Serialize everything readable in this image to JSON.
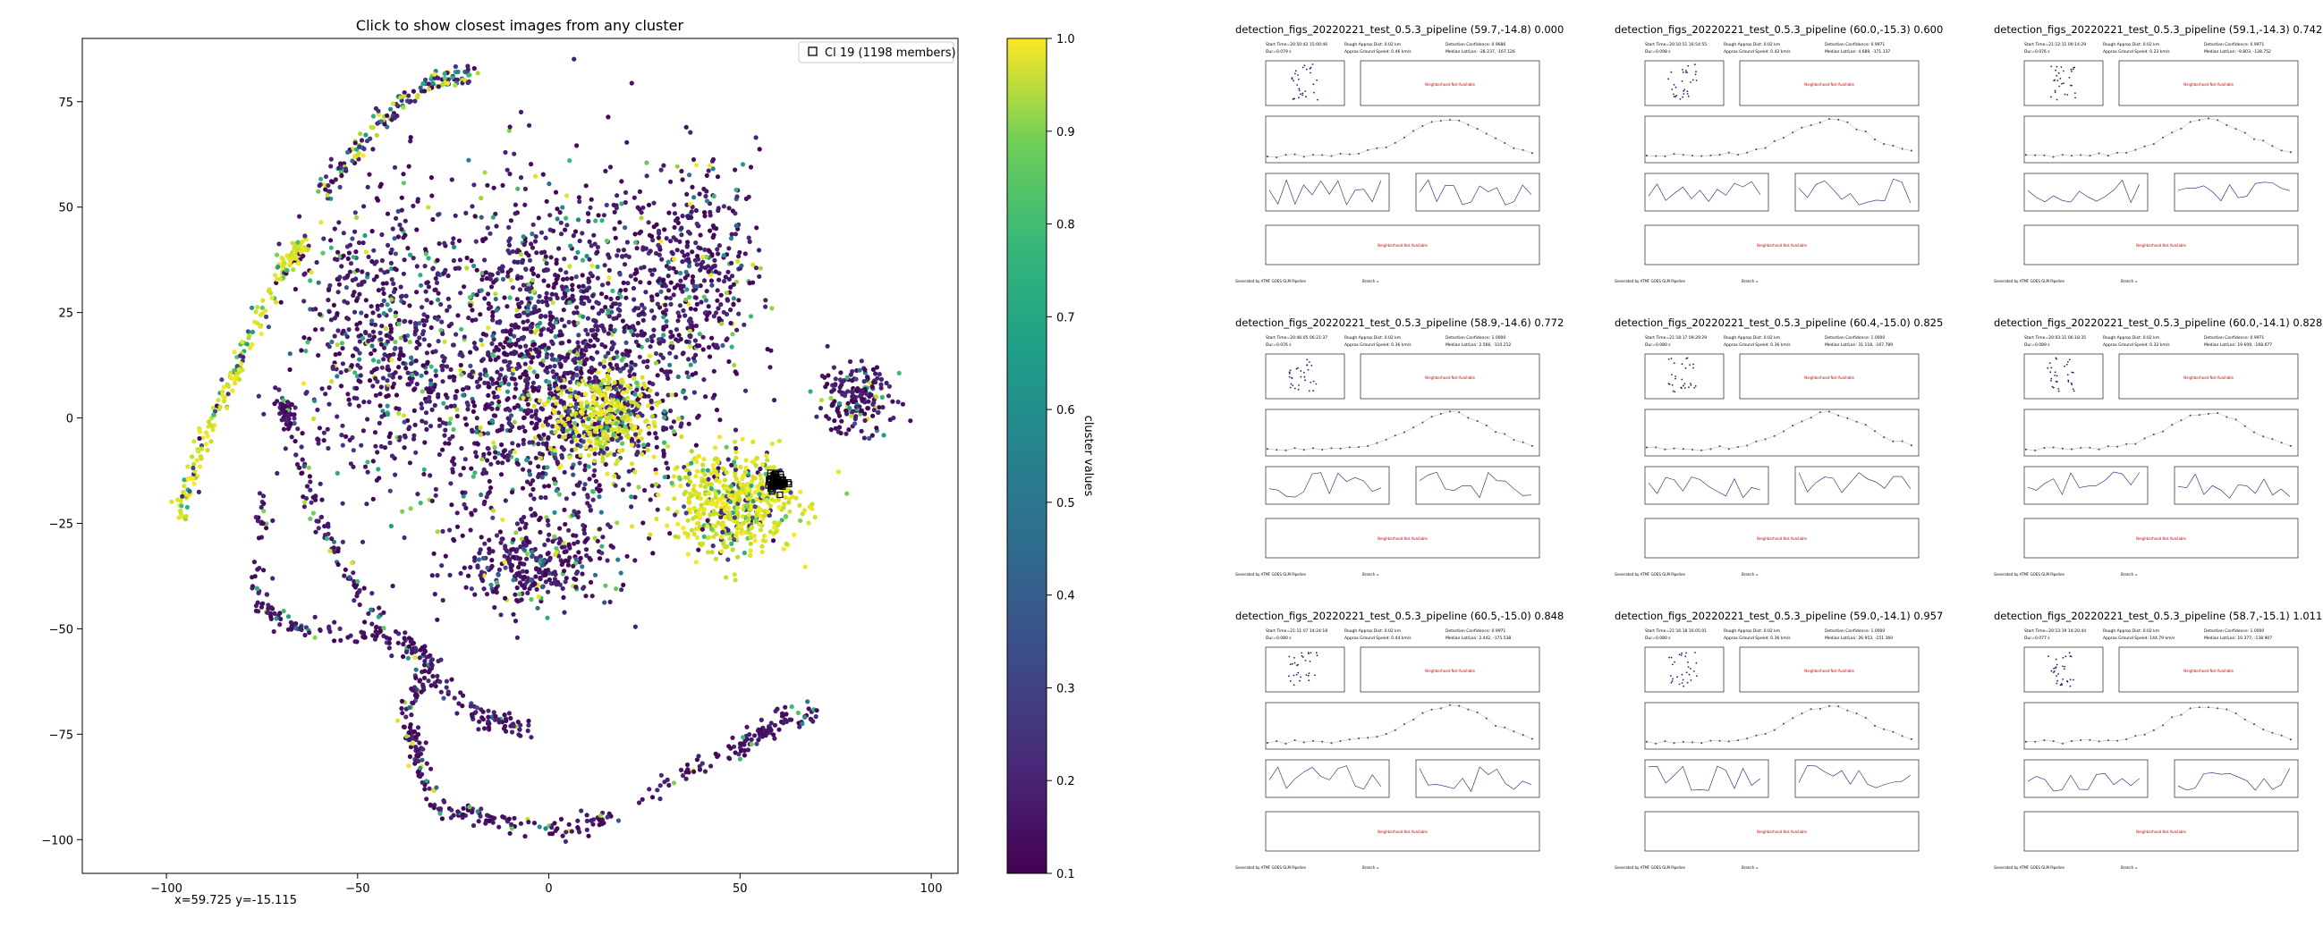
{
  "scatter_panel": {
    "title": "Click to show closest images from any cluster",
    "legend_label": "Cl 19 (1198 members)",
    "cursor_readout": "x=59.725 y=-15.115"
  },
  "colorbar": {
    "label": "cluster values",
    "ticks": [
      "0.1",
      "0.2",
      "0.3",
      "0.4",
      "0.5",
      "0.6",
      "0.7",
      "0.8",
      "0.9",
      "1.0"
    ],
    "colormap": "viridis"
  },
  "chart_data": {
    "type": "scatter",
    "title": "Click to show closest images from any cluster",
    "xlim": [
      -122,
      107
    ],
    "ylim": [
      -108,
      90
    ],
    "xticks": [
      -100,
      -50,
      0,
      50,
      100
    ],
    "yticks": [
      -100,
      -75,
      -50,
      -25,
      0,
      25,
      50,
      75
    ],
    "color_range": [
      0.1,
      1.0
    ],
    "color_label": "cluster values",
    "legend": {
      "location": "top-right",
      "entries": [
        "Cl 19 (1198 members)"
      ]
    },
    "highlight_cluster": {
      "name": "Cl 19 (1198 members)",
      "center": [
        59.7,
        -15.1
      ],
      "size": 1198
    },
    "regions": [
      {
        "kind": "blob",
        "center": [
          0,
          12
        ],
        "spread": [
          30,
          34
        ],
        "value": "low",
        "count": 1700
      },
      {
        "kind": "blob",
        "center": [
          -45,
          20
        ],
        "spread": [
          18,
          28
        ],
        "value": "low",
        "count": 500
      },
      {
        "kind": "blob",
        "center": [
          38,
          35
        ],
        "spread": [
          14,
          22
        ],
        "value": "low",
        "count": 400
      },
      {
        "kind": "blob",
        "center": [
          80,
          5
        ],
        "spread": [
          8,
          7
        ],
        "value": "low",
        "count": 180
      },
      {
        "kind": "blob",
        "center": [
          15,
          0
        ],
        "spread": [
          12,
          9
        ],
        "value": "high",
        "count": 350
      },
      {
        "kind": "blob",
        "center": [
          48,
          -20
        ],
        "spread": [
          14,
          10
        ],
        "value": "high",
        "count": 550
      },
      {
        "kind": "blob",
        "center": [
          -5,
          -35
        ],
        "spread": [
          18,
          8
        ],
        "value": "low",
        "count": 280
      },
      {
        "kind": "curve",
        "points": [
          [
            -97,
            -25
          ],
          [
            -90,
            -5
          ],
          [
            -80,
            15
          ],
          [
            -70,
            35
          ],
          [
            -64,
            42
          ]
        ],
        "value": "high",
        "count": 220
      },
      {
        "kind": "curve",
        "points": [
          [
            -60,
            52
          ],
          [
            -45,
            70
          ],
          [
            -30,
            80
          ],
          [
            -20,
            82
          ]
        ],
        "value": "mixed",
        "count": 160
      },
      {
        "kind": "curve",
        "points": [
          [
            -68,
            -2
          ],
          [
            -70,
            5
          ],
          [
            -60,
            -25
          ],
          [
            -40,
            -55
          ],
          [
            -20,
            -70
          ],
          [
            -5,
            -75
          ]
        ],
        "value": "low",
        "count": 240
      },
      {
        "kind": "curve",
        "points": [
          [
            -75,
            -18
          ],
          [
            -76,
            -45
          ],
          [
            -65,
            -50
          ],
          [
            -40,
            -52
          ],
          [
            -30,
            -58
          ],
          [
            -38,
            -70
          ],
          [
            -35,
            -78
          ]
        ],
        "value": "low",
        "count": 220
      },
      {
        "kind": "curve",
        "points": [
          [
            -35,
            -80
          ],
          [
            -30,
            -92
          ],
          [
            -15,
            -95
          ],
          [
            0,
            -98
          ],
          [
            15,
            -95
          ],
          [
            35,
            -85
          ],
          [
            50,
            -78
          ],
          [
            60,
            -72
          ],
          [
            70,
            -70
          ]
        ],
        "value": "low",
        "count": 260
      }
    ]
  },
  "thumbnails": [
    {
      "title": "detection_figs_20220221_test_0.5.3_pipeline (59.7,-14.8) 0.000",
      "header": [
        "Start Time=20:50:42 15:00:46",
        "Rough Approx Dist: 0.02 km",
        "Detection Confidence: 0.9686",
        "Dur=0.079 s",
        "Approx Ground Speed: 0.46 km/s",
        "Median Lat/Lon: -28.237, -167.126"
      ],
      "subplot_labels": [
        "Neighborhood Not Available",
        "Neighborhood Not Available"
      ],
      "footer": [
        "Generated by ATMF GOES GLM Pipeline",
        "Branch ="
      ]
    },
    {
      "title": "detection_figs_20220221_test_0.5.3_pipeline (60.0,-15.3) 0.600",
      "header": [
        "Start Time=20:10:51 16:54:55",
        "Rough Approx Dist: 0.02 km",
        "Detection Confidence: 0.9971",
        "Dur=0.098 s",
        "Approx Ground Speed: 0.42 km/s",
        "Median Lat/Lon: 4.689, -171.137"
      ],
      "subplot_labels": [
        "Neighborhood Not Available",
        "Neighborhood Not Available"
      ],
      "footer": [
        "Generated by ATMF GOES GLM Pipeline",
        "Branch ="
      ]
    },
    {
      "title": "detection_figs_20220221_test_0.5.3_pipeline (59.1,-14.3) 0.742",
      "header": [
        "Start Time=21:12:11 09:14:29",
        "Rough Approx Dist: 0.02 km",
        "Detection Confidence: 0.9971",
        "Dur=0.076 s",
        "Approx Ground Speed: 0.23 km/s",
        "Median Lat/Lon: -9.803, -128.752"
      ],
      "subplot_labels": [
        "Neighborhood Not Available",
        "Neighborhood Not Available"
      ],
      "footer": [
        "Generated by ATMF GOES GLM Pipeline",
        "Branch ="
      ]
    },
    {
      "title": "detection_figs_20220221_test_0.5.3_pipeline (58.9,-14.6) 0.772",
      "header": [
        "Start Time=20:46:05 06:21:37",
        "Rough Approx Dist: 0.02 km",
        "Detection Confidence: 1.0000",
        "Dur=0.076 s",
        "Approx Ground Speed: 0.36 km/s",
        "Median Lat/Lon: 2.566, -110.212"
      ],
      "subplot_labels": [
        "Neighborhood Not Available",
        "Neighborhood Not Available"
      ],
      "footer": [
        "Generated by ATMF GOES GLM Pipeline",
        "Branch ="
      ]
    },
    {
      "title": "detection_figs_20220221_test_0.5.3_pipeline (60.4,-15.0) 0.825",
      "header": [
        "Start Time=21:18:17 09:29:29",
        "Rough Approx Dist: 0.02 km",
        "Detection Confidence: 1.0000",
        "Dur=0.080 s",
        "Approx Ground Speed: 0.36 km/s",
        "Median Lat/Lon: 31.118, -167.789"
      ],
      "subplot_labels": [
        "Neighborhood Not Available",
        "Neighborhood Not Available"
      ],
      "footer": [
        "Generated by ATMF GOES GLM Pipeline",
        "Branch ="
      ]
    },
    {
      "title": "detection_figs_20220221_test_0.5.3_pipeline (60.0,-14.1) 0.828",
      "header": [
        "Start Time=20:03:31 06:18:35",
        "Rough Approx Dist: 0.02 km",
        "Detection Confidence: 0.9971",
        "Dur=0.089 s",
        "Approx Ground Speed: 0.32 km/s",
        "Median Lat/Lon: 19.609, -168.677"
      ],
      "subplot_labels": [
        "Neighborhood Not Available",
        "Neighborhood Not Available"
      ],
      "footer": [
        "Generated by ATMF GOES GLM Pipeline",
        "Branch ="
      ]
    },
    {
      "title": "detection_figs_20220221_test_0.5.3_pipeline (60.5,-15.0) 0.848",
      "header": [
        "Start Time=21:11:07 14:24:18",
        "Rough Approx Dist: 0.02 km",
        "Detection Confidence: 0.9971",
        "Dur=0.080 s",
        "Approx Ground Speed: 0.44 km/s",
        "Median Lat/Lon: 2.442, -175.538"
      ],
      "subplot_labels": [
        "Neighborhood Not Available",
        "Neighborhood Not Available"
      ],
      "footer": [
        "Generated by ATMF GOES GLM Pipeline",
        "Branch ="
      ]
    },
    {
      "title": "detection_figs_20220221_test_0.5.3_pipeline (59.0,-14.1) 0.957",
      "header": [
        "Start Time=21:16:18 16:05:01",
        "Rough Approx Dist: 0.02 km",
        "Detection Confidence: 1.0000",
        "Dur=0.080 s",
        "Approx Ground Speed: 0.36 km/s",
        "Median Lat/Lon: 26.953, -151.360"
      ],
      "subplot_labels": [
        "Neighborhood Not Available",
        "Neighborhood Not Available"
      ],
      "footer": [
        "Generated by ATMF GOES GLM Pipeline",
        "Branch ="
      ]
    },
    {
      "title": "detection_figs_20220221_test_0.5.3_pipeline (58.7,-15.1) 1.011",
      "header": [
        "Start Time=20:13:19 14:20:44",
        "Rough Approx Dist: 0.02 km",
        "Detection Confidence: 1.0000",
        "Dur=0.077 s",
        "Approx Ground Speed: 144.79 km/s",
        "Median Lat/Lon: 10.377, -138.907"
      ],
      "subplot_labels": [
        "Neighborhood Not Available",
        "Neighborhood Not Available"
      ],
      "footer": [
        "Generated by ATMF GOES GLM Pipeline",
        "Branch ="
      ]
    }
  ]
}
